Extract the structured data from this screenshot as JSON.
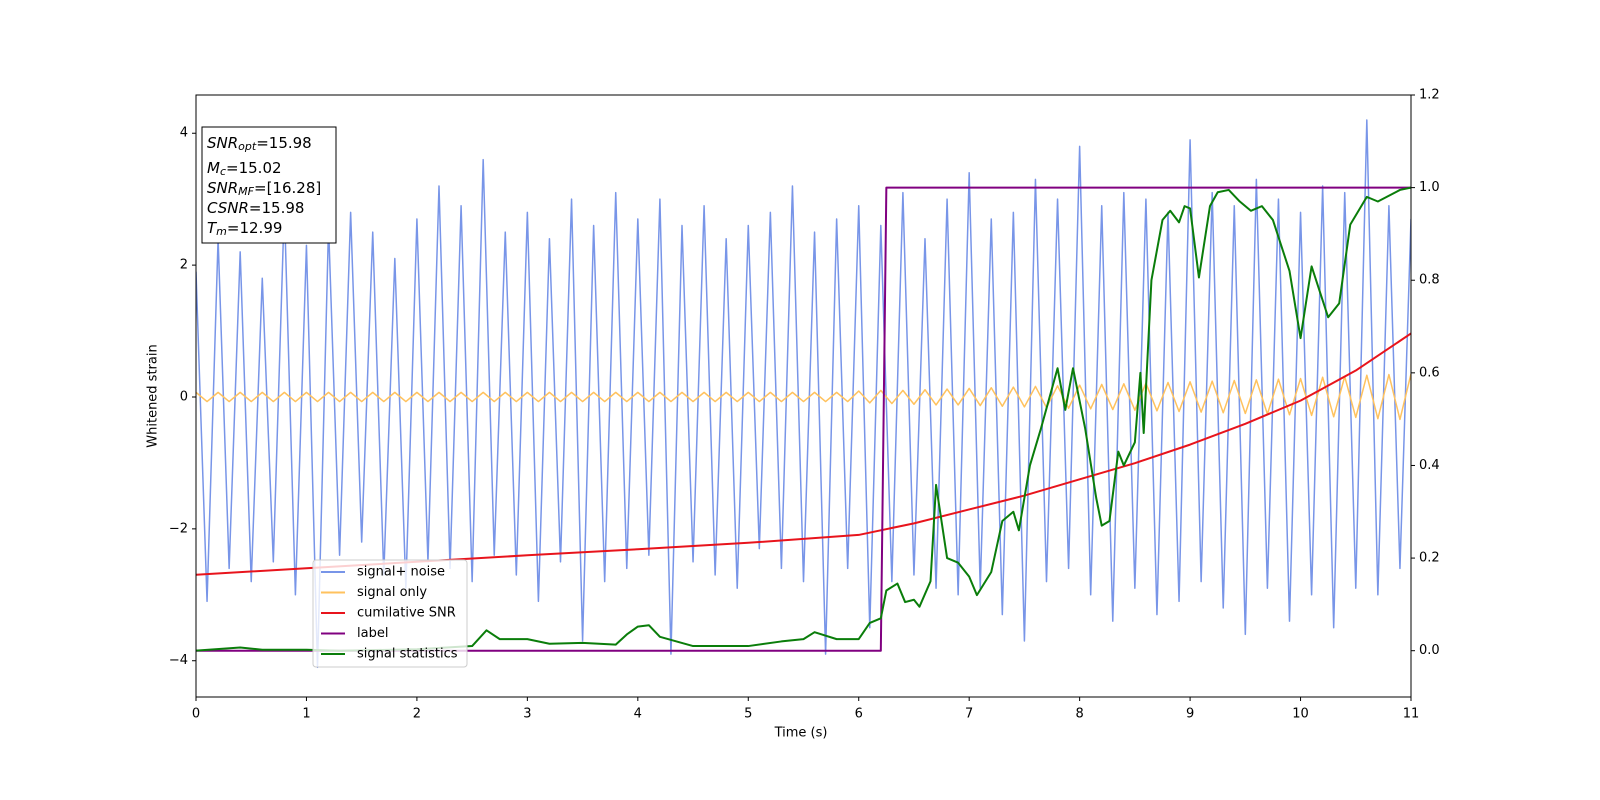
{
  "chart_data": {
    "type": "line",
    "xlabel": "Time (s)",
    "ylabel": "Whitened strain",
    "xlim": [
      0,
      11
    ],
    "xticks": [
      0,
      1,
      2,
      3,
      4,
      5,
      6,
      7,
      8,
      9,
      10,
      11
    ],
    "ylim": [
      -4.55,
      4.58
    ],
    "yticks": [
      {
        "value": -4,
        "label": "−4"
      },
      {
        "value": -2,
        "label": "−2"
      },
      0,
      2,
      4
    ],
    "y2lim": [
      -0.1,
      1.2
    ],
    "y2ticks": [
      {
        "value": 0,
        "label": "0.0"
      },
      {
        "value": 0.2,
        "label": "0.2"
      },
      {
        "value": 0.4,
        "label": "0.4"
      },
      {
        "value": 0.6,
        "label": "0.6"
      },
      {
        "value": 0.8,
        "label": "0.8"
      },
      {
        "value": 1.0,
        "label": "1.0"
      },
      {
        "value": 1.2,
        "label": "1.2"
      }
    ],
    "legend": true,
    "annotations": [
      {
        "symbol": "SNR",
        "subscript": "opt",
        "text": "=15.98"
      },
      {
        "symbol": "M",
        "subscript": "c",
        "text": "=15.02"
      },
      {
        "symbol": "SNR",
        "subscript": "MF",
        "text": "=[16.28]"
      },
      {
        "symbol": "CSNR",
        "subscript": "",
        "text": "=15.98"
      },
      {
        "symbol": "T",
        "subscript": "m",
        "text": "=12.99"
      }
    ],
    "x": [
      0,
      0.1,
      0.2,
      0.3,
      0.4,
      0.5,
      0.6,
      0.7,
      0.8,
      0.9,
      1,
      1.1,
      1.2,
      1.3,
      1.4,
      1.5,
      1.6,
      1.7,
      1.8,
      1.9,
      2,
      2.1,
      2.2,
      2.3,
      2.4,
      2.5,
      2.6,
      2.7,
      2.8,
      2.9,
      3,
      3.1,
      3.2,
      3.3,
      3.4,
      3.5,
      3.6,
      3.7,
      3.8,
      3.9,
      4,
      4.1,
      4.2,
      4.3,
      4.4,
      4.5,
      4.6,
      4.7,
      4.8,
      4.9,
      5,
      5.1,
      5.2,
      5.3,
      5.4,
      5.5,
      5.6,
      5.7,
      5.8,
      5.9,
      6,
      6.1,
      6.2,
      6.3,
      6.4,
      6.5,
      6.6,
      6.7,
      6.8,
      6.9,
      7,
      7.1,
      7.2,
      7.3,
      7.4,
      7.5,
      7.6,
      7.7,
      7.8,
      7.9,
      8,
      8.1,
      8.2,
      8.3,
      8.4,
      8.5,
      8.6,
      8.7,
      8.8,
      8.9,
      9,
      9.1,
      9.2,
      9.3,
      9.4,
      9.5,
      9.6,
      9.7,
      9.8,
      9.9,
      10,
      10.1,
      10.2,
      10.3,
      10.4,
      10.5,
      10.6,
      10.7,
      10.8,
      10.9,
      11
    ],
    "series": [
      {
        "name": "signal+ noise",
        "color": "#7895e8",
        "width": 1.5,
        "values": [
          1.9,
          -3.1,
          2.4,
          -2.6,
          2.2,
          -2.8,
          1.8,
          -2.5,
          2.9,
          -3.0,
          2.3,
          -4.1,
          2.6,
          -2.4,
          2.8,
          -2.2,
          2.5,
          -2.7,
          2.1,
          -2.9,
          2.7,
          -2.5,
          3.2,
          -2.6,
          2.9,
          -2.8,
          3.6,
          -2.4,
          2.5,
          -2.7,
          2.8,
          -3.1,
          2.4,
          -2.5,
          3.0,
          -3.7,
          2.6,
          -2.8,
          3.1,
          -2.6,
          2.7,
          -2.4,
          3.0,
          -3.9,
          2.6,
          -2.5,
          2.9,
          -2.7,
          2.4,
          -2.9,
          2.6,
          -2.3,
          2.8,
          -2.6,
          3.2,
          -2.8,
          2.5,
          -3.9,
          2.7,
          -2.6,
          2.9,
          -3.5,
          2.6,
          -2.8,
          3.1,
          -2.7,
          2.4,
          -2.9,
          3.0,
          -3.0,
          3.4,
          -2.9,
          2.7,
          -3.3,
          2.8,
          -3.7,
          3.3,
          -2.8,
          3.0,
          -2.6,
          3.8,
          -3.0,
          2.9,
          -3.4,
          3.1,
          -2.9,
          3.0,
          -3.3,
          2.8,
          -3.1,
          3.9,
          -2.8,
          3.1,
          -3.2,
          2.9,
          -3.6,
          3.3,
          -2.9,
          3.0,
          -3.4,
          2.8,
          -3.0,
          3.2,
          -3.5,
          3.1,
          -2.9,
          4.2,
          -3.0,
          2.9,
          -2.6,
          2.7
        ]
      },
      {
        "name": "signal only",
        "color": "#ffc25e",
        "width": 1.5,
        "values": [
          0.07,
          -0.07,
          0.07,
          -0.07,
          0.07,
          -0.07,
          0.07,
          -0.07,
          0.07,
          -0.07,
          0.07,
          -0.07,
          0.07,
          -0.07,
          0.07,
          -0.07,
          0.07,
          -0.07,
          0.07,
          -0.07,
          0.07,
          -0.07,
          0.07,
          -0.07,
          0.07,
          -0.07,
          0.07,
          -0.07,
          0.07,
          -0.07,
          0.07,
          -0.07,
          0.07,
          -0.07,
          0.07,
          -0.07,
          0.07,
          -0.07,
          0.07,
          -0.07,
          0.07,
          -0.07,
          0.07,
          -0.07,
          0.07,
          -0.07,
          0.07,
          -0.07,
          0.07,
          -0.07,
          0.07,
          -0.07,
          0.07,
          -0.07,
          0.07,
          -0.07,
          0.07,
          -0.07,
          0.07,
          -0.07,
          0.09,
          -0.09,
          0.1,
          -0.1,
          0.1,
          -0.11,
          0.11,
          -0.12,
          0.12,
          -0.12,
          0.13,
          -0.13,
          0.14,
          -0.14,
          0.15,
          -0.15,
          0.16,
          -0.16,
          0.17,
          -0.17,
          0.18,
          -0.18,
          0.19,
          -0.19,
          0.2,
          -0.2,
          0.21,
          -0.21,
          0.22,
          -0.22,
          0.23,
          -0.23,
          0.24,
          -0.24,
          0.25,
          -0.25,
          0.26,
          -0.26,
          0.27,
          -0.27,
          0.28,
          -0.28,
          0.3,
          -0.3,
          0.31,
          -0.31,
          0.33,
          -0.33,
          0.34,
          -0.34,
          0.35
        ]
      },
      {
        "name": "cumilative SNR",
        "color": "#e8141c",
        "width": 2,
        "axis": "y2",
        "x": [
          0,
          1,
          2,
          3,
          4,
          5,
          6,
          6.5,
          7,
          7.5,
          8,
          8.5,
          9,
          9.5,
          10,
          10.5,
          11
        ],
        "values": [
          0.164,
          0.178,
          0.192,
          0.206,
          0.219,
          0.233,
          0.25,
          0.275,
          0.305,
          0.335,
          0.37,
          0.405,
          0.445,
          0.49,
          0.54,
          0.605,
          0.685
        ]
      },
      {
        "name": "label",
        "color": "#800080",
        "width": 2,
        "axis": "y2",
        "x": [
          0,
          6.2,
          6.25,
          11
        ],
        "values": [
          0,
          0,
          1,
          1
        ]
      },
      {
        "name": "signal statistics",
        "color": "#0a7d0a",
        "width": 2,
        "axis": "y2",
        "x": [
          0,
          0.4,
          0.6,
          1.0,
          1.3,
          2.0,
          2.5,
          2.63,
          2.75,
          3.0,
          3.2,
          3.5,
          3.8,
          3.9,
          4.0,
          4.1,
          4.2,
          4.5,
          5.0,
          5.3,
          5.5,
          5.6,
          5.8,
          6.0,
          6.1,
          6.2,
          6.25,
          6.35,
          6.42,
          6.5,
          6.55,
          6.65,
          6.7,
          6.8,
          6.9,
          7.0,
          7.07,
          7.2,
          7.3,
          7.4,
          7.45,
          7.55,
          7.65,
          7.8,
          7.87,
          7.94,
          8.05,
          8.15,
          8.2,
          8.27,
          8.35,
          8.4,
          8.5,
          8.55,
          8.58,
          8.65,
          8.75,
          8.82,
          8.9,
          8.95,
          9.0,
          9.08,
          9.18,
          9.25,
          9.35,
          9.45,
          9.55,
          9.65,
          9.75,
          9.9,
          10.0,
          10.1,
          10.25,
          10.35,
          10.45,
          10.6,
          10.7,
          10.9,
          11
        ],
        "values": [
          0,
          0.007,
          0.002,
          0.002,
          0,
          0.003,
          0.01,
          0.044,
          0.025,
          0.025,
          0.015,
          0.017,
          0.013,
          0.035,
          0.052,
          0.055,
          0.03,
          0.01,
          0.01,
          0.02,
          0.025,
          0.04,
          0.025,
          0.025,
          0.06,
          0.07,
          0.13,
          0.145,
          0.105,
          0.11,
          0.095,
          0.15,
          0.358,
          0.2,
          0.19,
          0.16,
          0.12,
          0.17,
          0.28,
          0.3,
          0.26,
          0.4,
          0.48,
          0.61,
          0.52,
          0.61,
          0.48,
          0.33,
          0.27,
          0.28,
          0.43,
          0.4,
          0.45,
          0.6,
          0.47,
          0.8,
          0.93,
          0.95,
          0.925,
          0.96,
          0.955,
          0.806,
          0.96,
          0.99,
          0.995,
          0.97,
          0.95,
          0.96,
          0.93,
          0.82,
          0.675,
          0.83,
          0.72,
          0.75,
          0.92,
          0.98,
          0.97,
          0.995,
          1.0
        ]
      }
    ]
  }
}
